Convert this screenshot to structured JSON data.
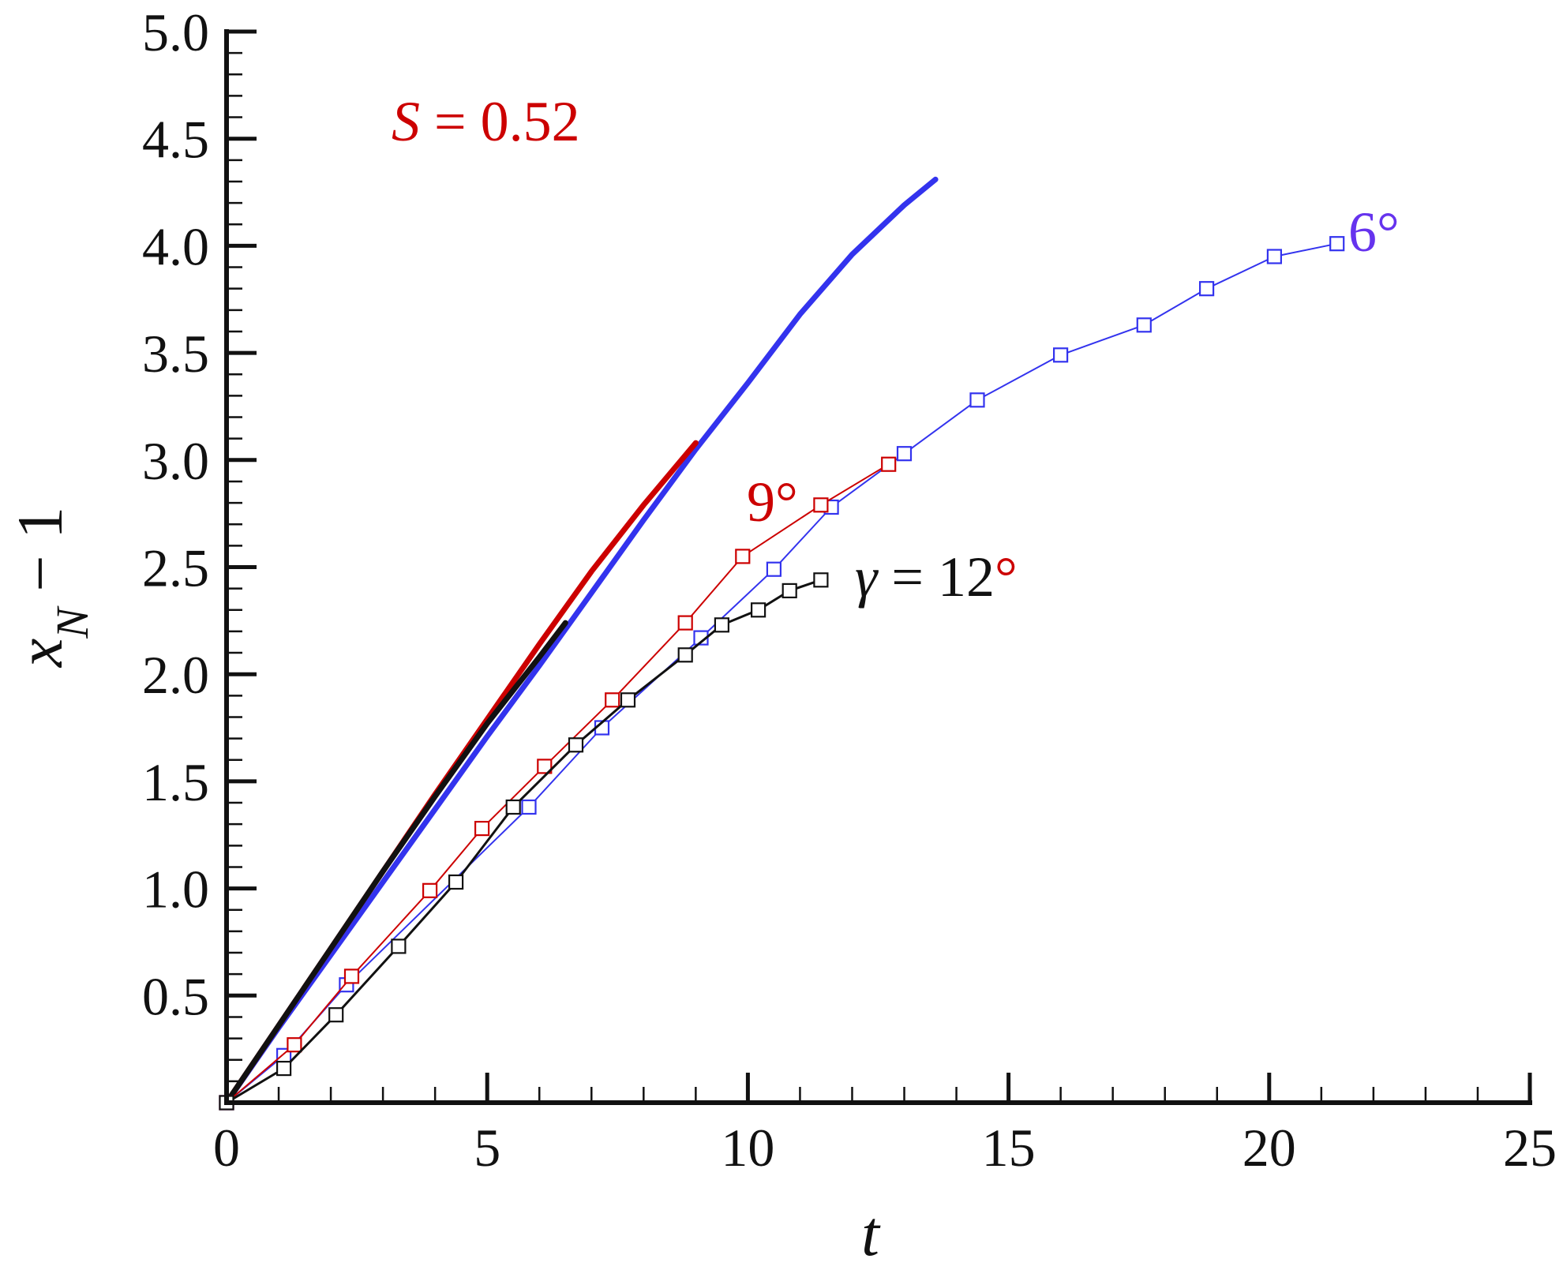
{
  "chart_data": {
    "type": "line",
    "xlim": [
      0,
      25
    ],
    "ylim": [
      0,
      5
    ],
    "x_ticks": [
      "0",
      "5",
      "10",
      "15",
      "20",
      "25"
    ],
    "y_ticks": [
      "0.5",
      "1.0",
      "1.5",
      "2.0",
      "2.5",
      "3.0",
      "3.5",
      "4.0",
      "4.5",
      "5.0"
    ],
    "x_tick_values": [
      0,
      5,
      10,
      15,
      20,
      25
    ],
    "y_tick_values": [
      0.5,
      1.0,
      1.5,
      2.0,
      2.5,
      3.0,
      3.5,
      4.0,
      4.5,
      5.0
    ],
    "xlabel": {
      "base": "t"
    },
    "ylabel": {
      "base": "x",
      "sub": "N",
      "suffix": " − 1"
    },
    "grid": false,
    "annotations": {
      "s_label": {
        "italic": "S",
        "rest": " = 0.52",
        "color": "#cc0000"
      },
      "gamma12": {
        "italic": "γ",
        "rest": " = 12",
        "degree": "°",
        "color": "#111111",
        "degree_color": "#cc0000"
      },
      "gamma9": {
        "text": "9°",
        "color": "#cc0000"
      },
      "gamma6": {
        "text": "6°",
        "color": "#6633ee"
      }
    },
    "series": [
      {
        "style": "curve",
        "color": "#3333ee",
        "width": 7,
        "x": [
          0,
          1,
          2,
          3,
          4,
          5,
          6,
          7,
          8,
          9,
          10,
          11,
          12,
          13,
          13.6
        ],
        "y": [
          0,
          0.35,
          0.69,
          1.03,
          1.37,
          1.71,
          2.04,
          2.38,
          2.72,
          3.05,
          3.36,
          3.68,
          3.96,
          4.19,
          4.31
        ]
      },
      {
        "style": "curve",
        "color": "#cc0000",
        "width": 7,
        "x": [
          0,
          1,
          2,
          3,
          4,
          5,
          6,
          7,
          8,
          9
        ],
        "y": [
          0,
          0.36,
          0.72,
          1.08,
          1.44,
          1.79,
          2.14,
          2.48,
          2.79,
          3.08
        ]
      },
      {
        "style": "curve",
        "color": "#111111",
        "width": 7,
        "x": [
          0,
          1,
          2,
          3,
          4,
          5,
          6,
          6.5
        ],
        "y": [
          0,
          0.36,
          0.72,
          1.08,
          1.43,
          1.77,
          2.08,
          2.24
        ]
      },
      {
        "style": "markers",
        "color": "#3333ee",
        "width": 2,
        "x": [
          0,
          1.1,
          2.3,
          5.8,
          7.2,
          9.1,
          10.5,
          11.6,
          13,
          14.4,
          16,
          17.6,
          18.8,
          20.1,
          21.3
        ],
        "y": [
          0,
          0.22,
          0.55,
          1.38,
          1.75,
          2.17,
          2.49,
          2.78,
          3.03,
          3.28,
          3.49,
          3.63,
          3.8,
          3.95,
          4.01
        ]
      },
      {
        "style": "markers",
        "color": "#cc0000",
        "width": 2,
        "x": [
          0,
          1.3,
          2.4,
          3.9,
          4.9,
          6.1,
          7.4,
          8.8,
          9.9,
          11.4,
          12.7
        ],
        "y": [
          0,
          0.27,
          0.59,
          0.99,
          1.28,
          1.57,
          1.88,
          2.24,
          2.55,
          2.79,
          2.98
        ]
      },
      {
        "style": "markers",
        "color": "#111111",
        "width": 3,
        "x": [
          0,
          1.1,
          2.1,
          3.3,
          4.4,
          5.5,
          6.7,
          7.7,
          8.8,
          9.5,
          10.2,
          10.8,
          11.4
        ],
        "y": [
          0,
          0.16,
          0.41,
          0.73,
          1.03,
          1.38,
          1.67,
          1.88,
          2.09,
          2.23,
          2.3,
          2.39,
          2.44
        ]
      }
    ]
  }
}
